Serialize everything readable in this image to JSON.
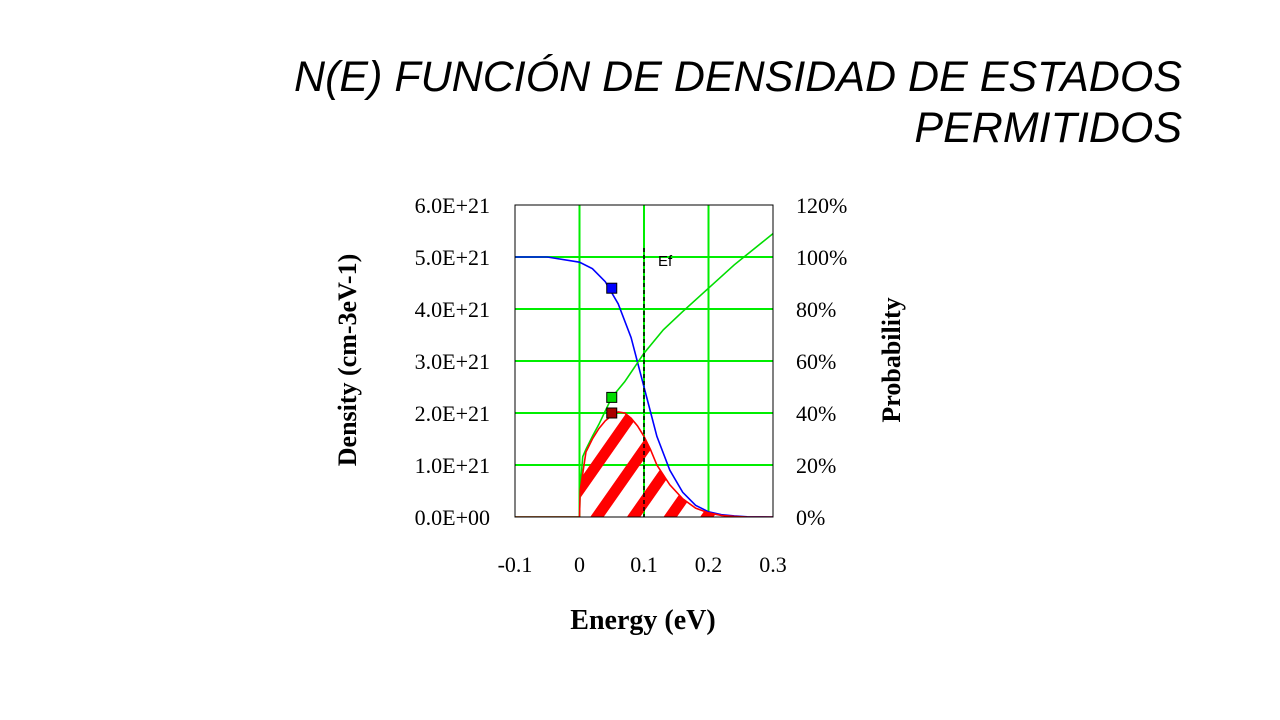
{
  "slide": {
    "title": "N(E) FUNCIÓN DE DENSIDAD DE ESTADOS PERMITIDOS"
  },
  "chart_data": {
    "type": "line",
    "title": "",
    "xlabel": "Energy (eV)",
    "ylabel": "Density (cm-3eV-1)",
    "y2label": "Probability",
    "xlim": [
      -0.1,
      0.3
    ],
    "ylim": [
      0,
      6e+21
    ],
    "y2lim": [
      0,
      1.2
    ],
    "xticks": [
      "-0.1",
      "0",
      "0.1",
      "0.2",
      "0.3"
    ],
    "yticks": [
      "0.0E+00",
      "1.0E+21",
      "2.0E+21",
      "3.0E+21",
      "4.0E+21",
      "5.0E+21",
      "6.0E+21"
    ],
    "y2ticks": [
      "0%",
      "20%",
      "40%",
      "60%",
      "80%",
      "100%",
      "120%"
    ],
    "grid": true,
    "fermi_level": {
      "label": "Ef",
      "x": 0.1
    },
    "series": [
      {
        "color": "#0000ff",
        "axis": "y2",
        "x": [
          -0.1,
          -0.05,
          0.0,
          0.02,
          0.04,
          0.06,
          0.08,
          0.1,
          0.12,
          0.14,
          0.16,
          0.18,
          0.2,
          0.22,
          0.24,
          0.26,
          0.3
        ],
        "values": [
          1.0,
          1.0,
          0.98,
          0.955,
          0.905,
          0.82,
          0.69,
          0.5,
          0.31,
          0.18,
          0.095,
          0.045,
          0.02,
          0.009,
          0.004,
          0.001,
          0.0
        ]
      },
      {
        "color": "#00dd00",
        "axis": "y",
        "x": [
          -0.1,
          0.0,
          0.001,
          0.005,
          0.01,
          0.02,
          0.03,
          0.05,
          0.07,
          0.1,
          0.13,
          0.16,
          0.2,
          0.24,
          0.28,
          0.3
        ],
        "values": [
          0,
          0,
          5.2e+20,
          1.16e+21,
          1.3e+21,
          1.55e+21,
          1.78e+21,
          2.3e+21,
          2.6e+21,
          3.15e+21,
          3.6e+21,
          3.95e+21,
          4.4e+21,
          4.85e+21,
          5.25e+21,
          5.45e+21
        ]
      },
      {
        "color": "#ff0000",
        "axis": "y",
        "x": [
          -0.1,
          0.0,
          0.001,
          0.01,
          0.02,
          0.03,
          0.04,
          0.05,
          0.06,
          0.07,
          0.08,
          0.09,
          0.1,
          0.11,
          0.12,
          0.14,
          0.16,
          0.18,
          0.2,
          0.22,
          0.24,
          0.26,
          0.3
        ],
        "values": [
          0,
          0,
          5e+20,
          1.25e+21,
          1.5e+21,
          1.7e+21,
          1.85e+21,
          1.95e+21,
          2.02e+21,
          2e+21,
          1.9e+21,
          1.75e+21,
          1.55e+21,
          1.3e+21,
          1e+21,
          6.2e+20,
          3.5e+20,
          1.7e+20,
          8e+19,
          3e+19,
          1e+19,
          0.0,
          0.0
        ]
      }
    ],
    "markers": [
      {
        "color": "#0000ff",
        "axis": "y2",
        "x": 0.05,
        "y": 0.88
      },
      {
        "color": "#00dd00",
        "axis": "y",
        "x": 0.05,
        "y": 2.3e+21
      },
      {
        "color": "#aa0000",
        "axis": "y",
        "x": 0.05,
        "y": 2e+21
      }
    ],
    "hatch": {
      "color": "#ff0000",
      "under_series": 2
    }
  }
}
